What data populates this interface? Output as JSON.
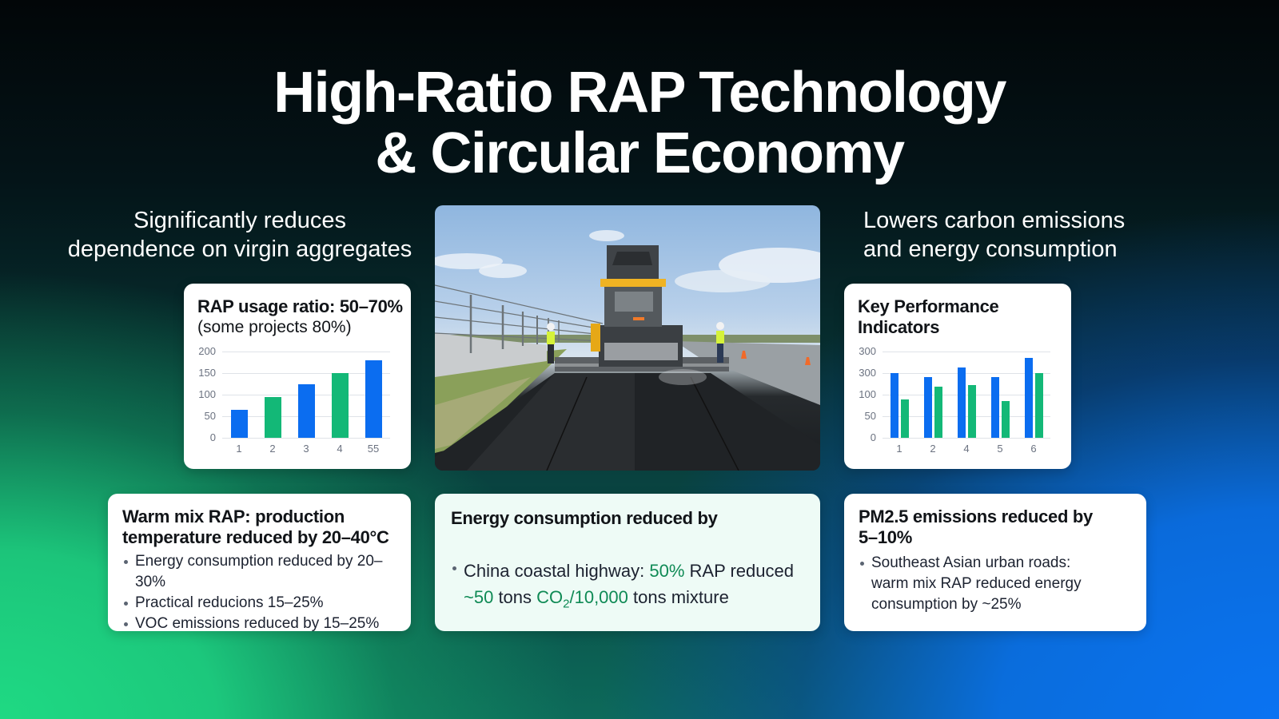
{
  "title": {
    "line1": "High-Ratio RAP Technology",
    "line2": "& Circular Economy"
  },
  "left_column": {
    "heading_line1": "Significantly reduces",
    "heading_line2": "dependence on virgin aggregates"
  },
  "right_column": {
    "heading_line1": "Lowers carbon emissions",
    "heading_line2": "and energy consumption"
  },
  "photo": {
    "alt": "Asphalt paver laying recycled asphalt on highway with two workers in safety vests"
  },
  "colors": {
    "blue": "#0b6df0",
    "green": "#13b877",
    "highlight_green": "#0f8a55"
  },
  "cards": {
    "rap_usage": {
      "title": "RAP usage ratio: 50–70%",
      "subtitle": "(some projects 80%)"
    },
    "kpi": {
      "title_line1": "Key Performance",
      "title_line2": "Indicators"
    },
    "warm_mix": {
      "title_line1": "Warm mix RAP: production",
      "title_line2": "temperature reduced by 20–40°C",
      "bullets": [
        "Energy consumption reduced by 20–30%",
        "Practical reducions 15–25%",
        "VOC emissions reduced by 15–25%"
      ]
    },
    "energy": {
      "title": "Energy consumption reduced by",
      "bullet_prefix": "China coastal highway: ",
      "bullet_hl1": "50%",
      "bullet_mid": " RAP reduced",
      "line2_hl1": "~50",
      "line2_mid": " tons ",
      "line2_hl2_co": "CO",
      "line2_hl2_sub": "2",
      "line2_hl3": "/10,000",
      "line2_end": " tons mixture"
    },
    "pm25": {
      "title_line1": "PM2.5 emissions reduced by",
      "title_line2": "5–10%",
      "bullet_line1": "Southeast Asian urban roads:",
      "bullet_line2": "warm mix RAP reduced energy",
      "bullet_line3": "consumption by ~25%"
    }
  },
  "chart_data": [
    {
      "type": "bar",
      "title": "RAP usage ratio: 50–70% (some projects 80%)",
      "categories": [
        "1",
        "2",
        "3",
        "4",
        "55"
      ],
      "values": [
        65,
        95,
        125,
        150,
        180
      ],
      "bar_colors": [
        "#0b6df0",
        "#13b877",
        "#0b6df0",
        "#13b877",
        "#0b6df0"
      ],
      "yticks": [
        "0",
        "50",
        "100",
        "150",
        "200"
      ],
      "xlabel": "",
      "ylabel": "",
      "ylim": [
        0,
        200
      ],
      "grid": true,
      "legend": "none"
    },
    {
      "type": "bar",
      "title": "Key Performance Indicators",
      "categories": [
        "1",
        "2",
        "4",
        "5",
        "6"
      ],
      "series": [
        {
          "name": "blue",
          "color": "#0b6df0",
          "values": [
            150,
            140,
            163,
            140,
            185
          ]
        },
        {
          "name": "green",
          "color": "#13b877",
          "values": [
            88,
            118,
            122,
            86,
            150
          ]
        }
      ],
      "yticks": [
        "0",
        "50",
        "100",
        "300",
        "300"
      ],
      "xlabel": "",
      "ylabel": "",
      "ylim": [
        0,
        200
      ],
      "grid": true,
      "legend": "none"
    }
  ]
}
